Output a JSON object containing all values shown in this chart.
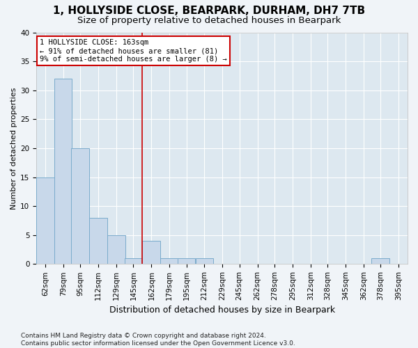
{
  "title1": "1, HOLLYSIDE CLOSE, BEARPARK, DURHAM, DH7 7TB",
  "title2": "Size of property relative to detached houses in Bearpark",
  "xlabel": "Distribution of detached houses by size in Bearpark",
  "ylabel": "Number of detached properties",
  "bin_labels": [
    "62sqm",
    "79sqm",
    "95sqm",
    "112sqm",
    "129sqm",
    "145sqm",
    "162sqm",
    "179sqm",
    "195sqm",
    "212sqm",
    "229sqm",
    "245sqm",
    "262sqm",
    "278sqm",
    "295sqm",
    "312sqm",
    "328sqm",
    "345sqm",
    "362sqm",
    "378sqm",
    "395sqm"
  ],
  "bin_left_edges": [
    62,
    79,
    95,
    112,
    129,
    145,
    162,
    179,
    195,
    212,
    229,
    245,
    262,
    278,
    295,
    312,
    328,
    345,
    362,
    378,
    395
  ],
  "bin_width": 17,
  "bar_heights": [
    15,
    32,
    20,
    8,
    5,
    1,
    4,
    1,
    1,
    1,
    0,
    0,
    0,
    0,
    0,
    0,
    0,
    0,
    0,
    1,
    0
  ],
  "bar_color": "#c8d8ea",
  "bar_edgecolor": "#7aabcc",
  "vline_bin_index": 6,
  "vline_color": "#cc0000",
  "annotation_text": "1 HOLLYSIDE CLOSE: 163sqm\n← 91% of detached houses are smaller (81)\n9% of semi-detached houses are larger (8) →",
  "annotation_box_edgecolor": "#cc0000",
  "annotation_box_facecolor": "#ffffff",
  "ylim": [
    0,
    40
  ],
  "yticks": [
    0,
    5,
    10,
    15,
    20,
    25,
    30,
    35,
    40
  ],
  "background_color": "#dde8f0",
  "grid_color": "#ffffff",
  "fig_facecolor": "#f0f4f8",
  "title1_fontsize": 11,
  "title2_fontsize": 9.5,
  "xlabel_fontsize": 9,
  "ylabel_fontsize": 8,
  "tick_fontsize": 7.5,
  "annotation_fontsize": 7.5,
  "footer_fontsize": 6.5,
  "footer": "Contains HM Land Registry data © Crown copyright and database right 2024.\nContains public sector information licensed under the Open Government Licence v3.0."
}
